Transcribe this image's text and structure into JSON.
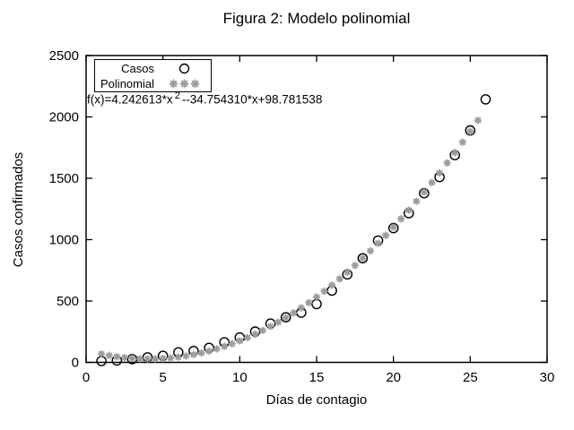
{
  "window": {
    "background": "#ffffff"
  },
  "colors": {
    "foreground": "#000000",
    "casos_marker": "#000000",
    "polinomial_marker": "#9c9c9c"
  },
  "chart_data": {
    "type": "scatter",
    "title": "Figura 2: Modelo polinomial",
    "xlabel": "Días de contagio",
    "ylabel": "Casos confirmados",
    "xlim": [
      0,
      30
    ],
    "ylim": [
      0,
      2500
    ],
    "x_ticks": [
      0,
      5,
      10,
      15,
      20,
      25,
      30
    ],
    "y_ticks": [
      0,
      500,
      1000,
      1500,
      2000,
      2500
    ],
    "grid": false,
    "legend_position": "top-left",
    "annotation": {
      "prefix": "f(x)=4.242613*x",
      "sup": "2",
      "suffix": "--34.754310*x+98.781538"
    },
    "fit_coefficients": {
      "x2": 4.242613,
      "x1": -34.75431,
      "x0": 98.781538
    },
    "series": [
      {
        "name": "Casos",
        "marker": "circle",
        "color": "#000000",
        "x": [
          1,
          2,
          3,
          4,
          5,
          6,
          7,
          8,
          9,
          10,
          11,
          12,
          13,
          14,
          15,
          16,
          17,
          18,
          19,
          20,
          21,
          22,
          23,
          24,
          25,
          26
        ],
        "y": [
          11,
          15,
          26,
          41,
          53,
          82,
          93,
          118,
          164,
          203,
          251,
          316,
          367,
          405,
          475,
          585,
          717,
          848,
          993,
          1094,
          1215,
          1378,
          1510,
          1688,
          1890,
          2143
        ]
      },
      {
        "name": "Polinomial",
        "marker": "asterisk",
        "color": "#9c9c9c",
        "x": [
          1,
          1.5,
          2,
          2.5,
          3,
          3.5,
          4,
          4.5,
          5,
          5.5,
          6,
          6.5,
          7,
          7.5,
          8,
          8.5,
          9,
          9.5,
          10,
          10.5,
          11,
          11.5,
          12,
          12.5,
          13,
          13.5,
          14,
          14.5,
          15,
          15.5,
          16,
          16.5,
          17,
          17.5,
          18,
          18.5,
          19,
          19.5,
          20,
          20.5,
          21,
          21.5,
          22,
          22.5,
          23,
          23.5,
          24,
          24.5,
          25,
          25.5
        ],
        "y": [
          68.3,
          56.2,
          46.2,
          38.4,
          32.7,
          29.1,
          27.6,
          28.3,
          31.1,
          36.0,
          43.0,
          52.1,
          63.4,
          76.8,
          92.3,
          109.9,
          129.6,
          151.5,
          175.5,
          201.6,
          229.8,
          260.2,
          292.7,
          327.3,
          364.0,
          402.8,
          443.8,
          486.9,
          532.1,
          579.4,
          628.8,
          680.4,
          734.1,
          789.9,
          847.8,
          907.9,
          970.0,
          1034.3,
          1100.7,
          1169.3,
          1239.9,
          1312.7,
          1387.6,
          1464.6,
          1543.8,
          1625.0,
          1708.4,
          1793.9,
          1881.6,
          1971.3
        ]
      }
    ]
  }
}
